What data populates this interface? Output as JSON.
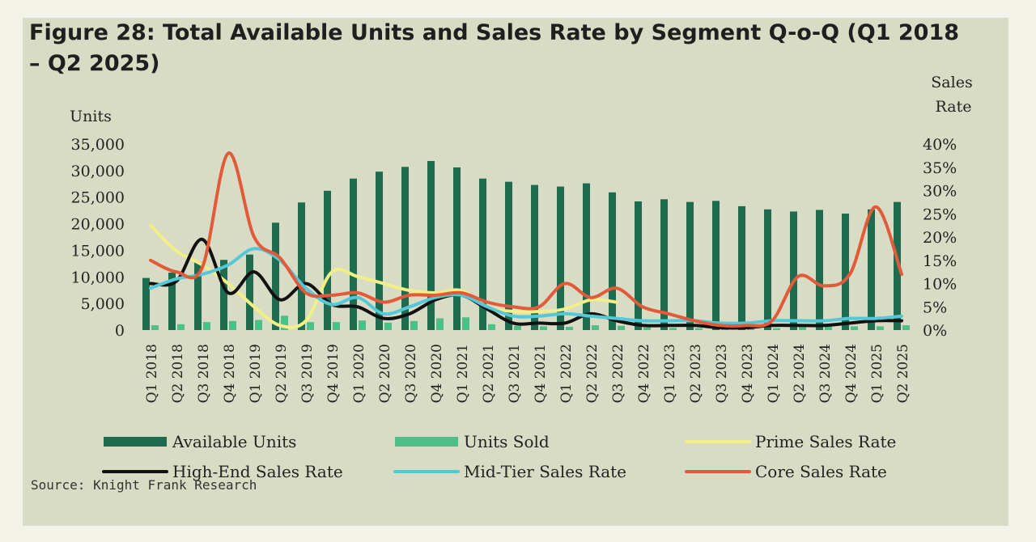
{
  "title": "Figure 28: Total Available Units and Sales Rate by Segment Q-o-Q (Q1 2018 – Q2 2025)",
  "source": "Source: Knight Frank Research",
  "colors": {
    "available_units": "#1f6b4f",
    "units_sold": "#4fbf88",
    "prime": "#f2ef88",
    "high_end": "#111111",
    "mid_tier": "#55c8d8",
    "core": "#e35a3a"
  },
  "chart_data": {
    "type": "bar+line",
    "left_axis": {
      "label": "Units",
      "ylim": [
        0,
        35000
      ],
      "ticks": [
        "0",
        "5,000",
        "10,000",
        "15,000",
        "20,000",
        "25,000",
        "30,000",
        "35,000"
      ]
    },
    "right_axis": {
      "label_line1": "Sales",
      "label_line2": "Rate",
      "ylim": [
        0,
        0.4
      ],
      "ticks": [
        "0%",
        "5%",
        "10%",
        "15%",
        "20%",
        "25%",
        "30%",
        "35%",
        "40%"
      ]
    },
    "categories": [
      "Q1 2018",
      "Q2 2018",
      "Q3 2018",
      "Q4 2018",
      "Q1 2019",
      "Q2 2019",
      "Q3 2019",
      "Q4 2019",
      "Q1 2020",
      "Q2 2020",
      "Q3 2020",
      "Q4 2020",
      "Q1 2021",
      "Q2 2021",
      "Q3 2021",
      "Q4 2021",
      "Q1 2022",
      "Q2 2022",
      "Q3 2022",
      "Q4 2022",
      "Q1 2023",
      "Q2 2023",
      "Q3 2023",
      "Q4 2023",
      "Q1 2024",
      "Q2 2024",
      "Q3 2024",
      "Q4 2024",
      "Q1 2025",
      "Q2 2025"
    ],
    "bars": [
      {
        "name": "Available Units",
        "axis": "left",
        "values": [
          9800,
          10800,
          12800,
          13200,
          14200,
          20200,
          24000,
          26200,
          28500,
          29800,
          30700,
          31800,
          30600,
          28500,
          27900,
          27300,
          27000,
          27600,
          25900,
          24200,
          24600,
          24100,
          24300,
          23300,
          22700,
          22300,
          22600,
          21900,
          22700,
          24100
        ]
      },
      {
        "name": "Units Sold",
        "axis": "left",
        "values": [
          900,
          1100,
          1500,
          1700,
          1900,
          2700,
          1500,
          1500,
          1800,
          1400,
          1700,
          2200,
          2400,
          1100,
          800,
          700,
          600,
          900,
          800,
          500,
          400,
          350,
          300,
          250,
          350,
          800,
          700,
          700,
          700,
          900
        ]
      }
    ],
    "series": [
      {
        "name": "Prime Sales Rate",
        "axis": "right",
        "values": [
          0.225,
          0.17,
          0.14,
          0.1,
          0.05,
          0.01,
          0.02,
          0.125,
          0.115,
          0.1,
          0.085,
          0.08,
          0.085,
          0.05,
          0.04,
          0.04,
          0.045,
          0.065,
          0.06,
          null,
          null,
          null,
          null,
          null,
          null,
          null,
          null,
          null,
          null,
          null
        ]
      },
      {
        "name": "High-End Sales Rate",
        "axis": "right",
        "values": [
          0.1,
          0.105,
          0.195,
          0.08,
          0.125,
          0.065,
          0.1,
          0.055,
          0.05,
          0.025,
          0.035,
          0.065,
          0.075,
          0.045,
          0.015,
          0.015,
          0.015,
          0.035,
          0.02,
          0.01,
          0.01,
          0.01,
          0.005,
          0.005,
          0.01,
          0.01,
          0.01,
          0.015,
          0.02,
          0.02
        ]
      },
      {
        "name": "Mid-Tier Sales Rate",
        "axis": "right",
        "values": [
          0.09,
          0.11,
          0.12,
          0.14,
          0.175,
          0.15,
          0.09,
          0.055,
          0.07,
          0.035,
          0.05,
          0.07,
          0.075,
          0.05,
          0.03,
          0.03,
          0.035,
          0.03,
          0.025,
          0.02,
          0.02,
          0.02,
          0.015,
          0.015,
          0.02,
          0.02,
          0.02,
          0.025,
          0.025,
          0.03
        ]
      },
      {
        "name": "Core Sales Rate",
        "axis": "right",
        "values": [
          0.15,
          0.125,
          0.135,
          0.38,
          0.2,
          0.155,
          0.08,
          0.075,
          0.08,
          0.06,
          0.075,
          0.075,
          0.08,
          0.06,
          0.05,
          0.05,
          0.1,
          0.07,
          0.09,
          0.05,
          0.035,
          0.02,
          0.01,
          0.01,
          0.02,
          0.115,
          0.095,
          0.12,
          0.265,
          0.12
        ]
      }
    ],
    "legend": [
      "Available Units",
      "Units Sold",
      "Prime Sales Rate",
      "High-End Sales Rate",
      "Mid-Tier Sales Rate",
      "Core Sales Rate"
    ],
    "legend_position": "bottom",
    "grid": false
  }
}
